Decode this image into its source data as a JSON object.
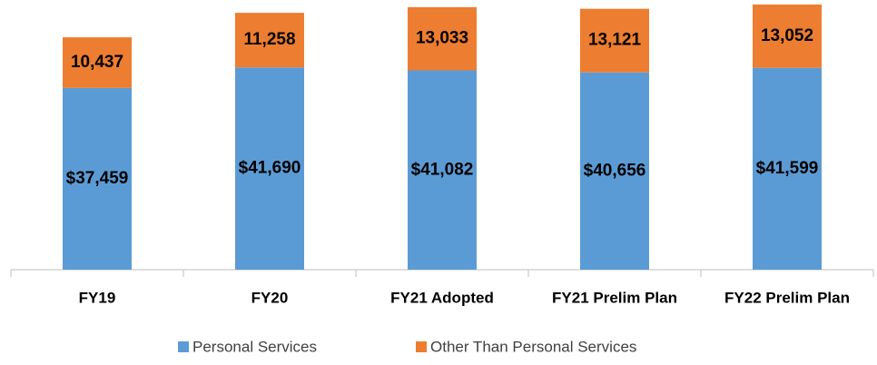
{
  "chart_data": {
    "type": "stacked_bar",
    "categories": [
      "FY19",
      "FY20",
      "FY21 Adopted",
      "FY21 Prelim Plan",
      "FY22 Prelim Plan"
    ],
    "series": [
      {
        "name": "Personal Services",
        "color": "#5b9bd5",
        "values": [
          37459,
          41690,
          41082,
          40656,
          41599
        ],
        "value_labels": [
          "$37,459",
          "$41,690",
          "$41,082",
          "$40,656",
          "$41,599"
        ]
      },
      {
        "name": "Other Than Personal Services",
        "color": "#ed7d31",
        "values": [
          10437,
          11258,
          13033,
          13121,
          13052
        ],
        "value_labels": [
          "10,437",
          "11,258",
          "13,033",
          "13,121",
          "13,052"
        ]
      }
    ],
    "legend": "bottom"
  }
}
